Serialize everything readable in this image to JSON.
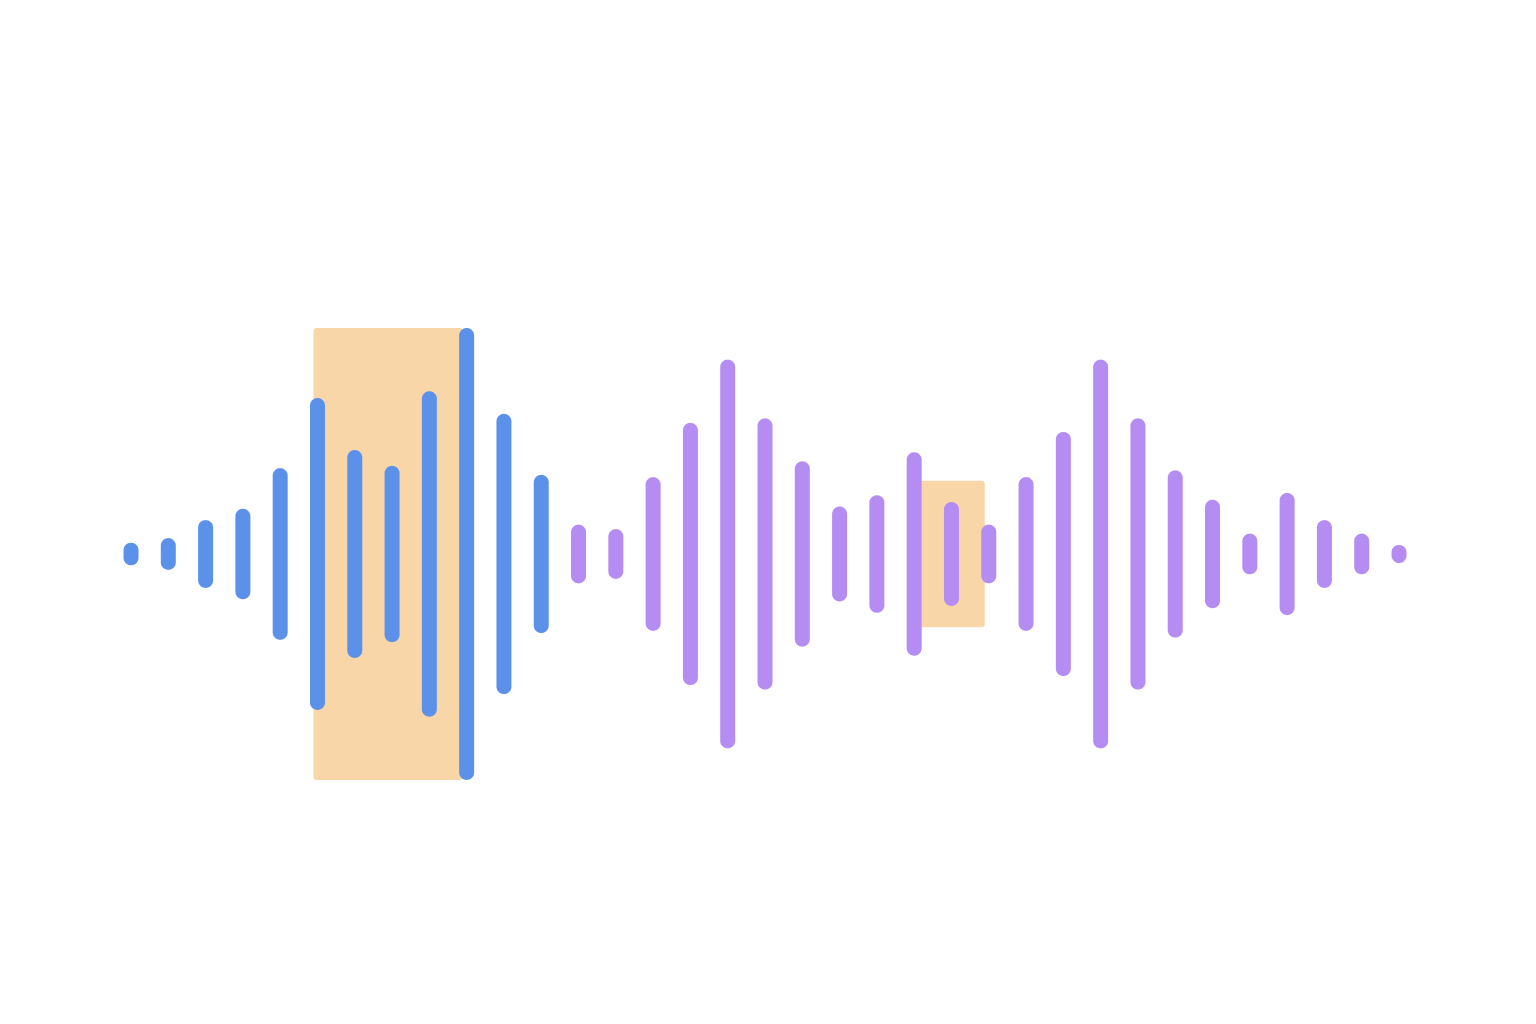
{
  "colors": {
    "background": "#ffffff",
    "blue": "#5b91e8",
    "purple": "#b48cf2",
    "highlight": "#f9d6a8"
  },
  "waveform": {
    "bars": [
      {
        "color": "blue",
        "amplitude": 0.05
      },
      {
        "color": "blue",
        "amplitude": 0.07
      },
      {
        "color": "blue",
        "amplitude": 0.15
      },
      {
        "color": "blue",
        "amplitude": 0.2
      },
      {
        "color": "blue",
        "amplitude": 0.38
      },
      {
        "color": "blue",
        "amplitude": 0.69
      },
      {
        "color": "blue",
        "amplitude": 0.46
      },
      {
        "color": "blue",
        "amplitude": 0.39
      },
      {
        "color": "blue",
        "amplitude": 0.72
      },
      {
        "color": "blue",
        "amplitude": 1.0
      },
      {
        "color": "blue",
        "amplitude": 0.62
      },
      {
        "color": "blue",
        "amplitude": 0.35
      },
      {
        "color": "purple",
        "amplitude": 0.13
      },
      {
        "color": "purple",
        "amplitude": 0.11
      },
      {
        "color": "purple",
        "amplitude": 0.34
      },
      {
        "color": "purple",
        "amplitude": 0.58
      },
      {
        "color": "purple",
        "amplitude": 0.86
      },
      {
        "color": "purple",
        "amplitude": 0.6
      },
      {
        "color": "purple",
        "amplitude": 0.41
      },
      {
        "color": "purple",
        "amplitude": 0.21
      },
      {
        "color": "purple",
        "amplitude": 0.26
      },
      {
        "color": "purple",
        "amplitude": 0.45
      },
      {
        "color": "purple",
        "amplitude": 0.23
      },
      {
        "color": "purple",
        "amplitude": 0.13
      },
      {
        "color": "purple",
        "amplitude": 0.34
      },
      {
        "color": "purple",
        "amplitude": 0.54
      },
      {
        "color": "purple",
        "amplitude": 0.86
      },
      {
        "color": "purple",
        "amplitude": 0.6
      },
      {
        "color": "purple",
        "amplitude": 0.37
      },
      {
        "color": "purple",
        "amplitude": 0.24
      },
      {
        "color": "purple",
        "amplitude": 0.09
      },
      {
        "color": "purple",
        "amplitude": 0.27
      },
      {
        "color": "purple",
        "amplitude": 0.15
      },
      {
        "color": "purple",
        "amplitude": 0.09
      },
      {
        "color": "purple",
        "amplitude": 0.04
      }
    ],
    "highlights": [
      {
        "start_bar": 5,
        "end_bar": 9
      },
      {
        "start_bar": 21,
        "end_bar": 23
      }
    ]
  }
}
